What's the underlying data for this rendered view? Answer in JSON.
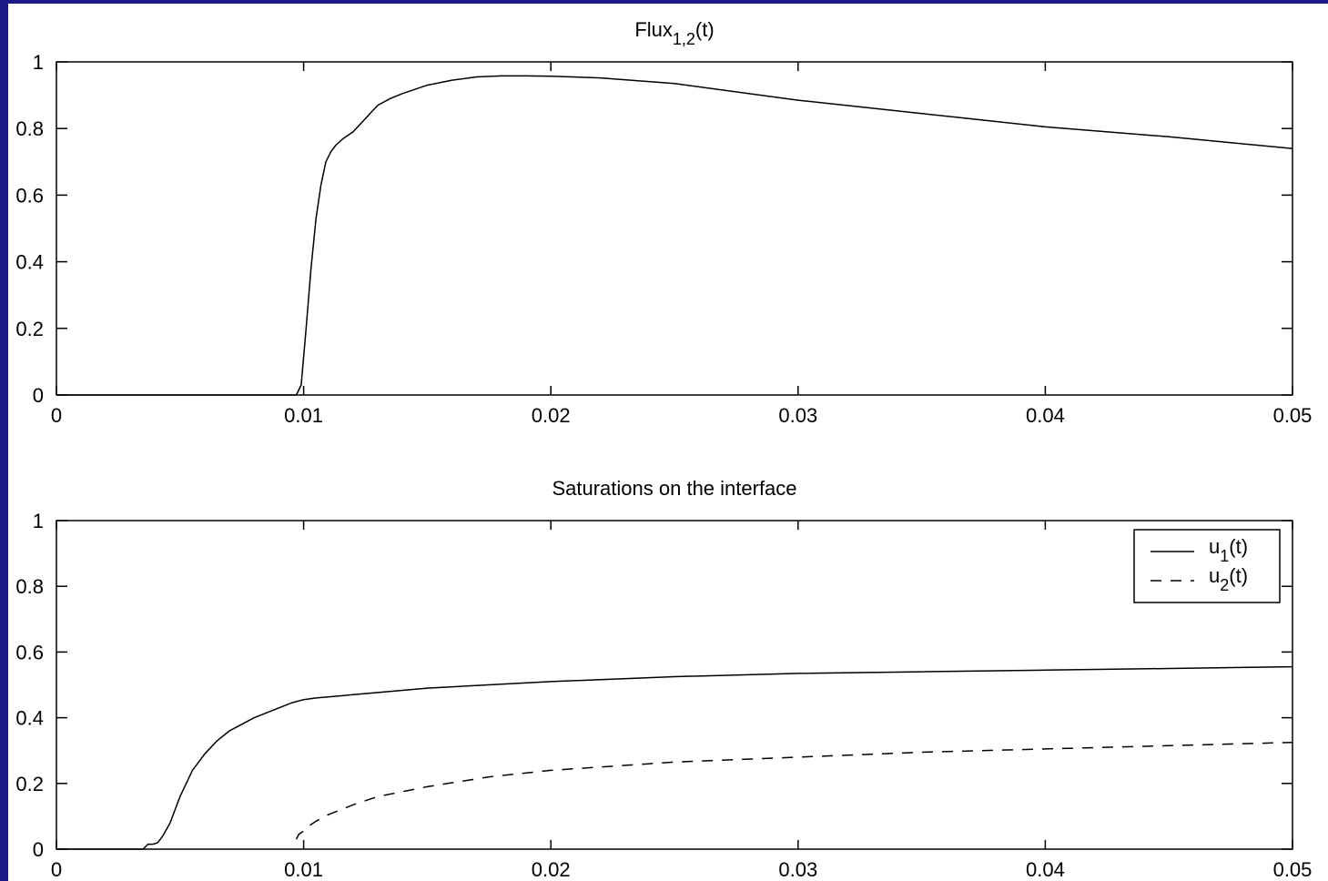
{
  "colors": {
    "frame": "#1c1a8a",
    "background": "#ffffff",
    "ink": "#000000"
  },
  "chart_data": [
    {
      "type": "line",
      "title": "Flux",
      "title_subscript": "1,2",
      "title_suffix": "(t)",
      "xlim": [
        0,
        0.05
      ],
      "ylim": [
        0,
        1
      ],
      "xticks": [
        "0",
        "0.01",
        "0.02",
        "0.03",
        "0.04",
        "0.05"
      ],
      "yticks": [
        "0",
        "0.2",
        "0.4",
        "0.6",
        "0.8",
        "1"
      ],
      "grid": false,
      "series": [
        {
          "style": "solid",
          "x": [
            0,
            0.0097,
            0.0099,
            0.0101,
            0.0103,
            0.0105,
            0.0107,
            0.0109,
            0.0111,
            0.0113,
            0.0116,
            0.012,
            0.0125,
            0.013,
            0.0135,
            0.014,
            0.015,
            0.016,
            0.017,
            0.018,
            0.019,
            0.02,
            0.022,
            0.025,
            0.03,
            0.035,
            0.04,
            0.045,
            0.05
          ],
          "y": [
            0,
            0,
            0.03,
            0.2,
            0.38,
            0.53,
            0.63,
            0.7,
            0.73,
            0.75,
            0.77,
            0.79,
            0.83,
            0.87,
            0.89,
            0.905,
            0.93,
            0.945,
            0.955,
            0.958,
            0.958,
            0.957,
            0.952,
            0.935,
            0.885,
            0.845,
            0.805,
            0.775,
            0.74
          ]
        }
      ]
    },
    {
      "type": "line",
      "title": "Saturations on the interface",
      "xlim": [
        0,
        0.05
      ],
      "ylim": [
        0,
        1
      ],
      "xticks": [
        "0",
        "0.01",
        "0.02",
        "0.03",
        "0.04",
        "0.05"
      ],
      "yticks": [
        "0",
        "0.2",
        "0.4",
        "0.6",
        "0.8",
        "1"
      ],
      "grid": false,
      "legend": "top-right",
      "series": [
        {
          "name": "u",
          "name_subscript": "1",
          "name_suffix": "(t)",
          "style": "solid",
          "x": [
            0,
            0.0035,
            0.0037,
            0.0039,
            0.0041,
            0.0043,
            0.0046,
            0.005,
            0.0055,
            0.006,
            0.0065,
            0.007,
            0.008,
            0.009,
            0.0095,
            0.01,
            0.0105,
            0.012,
            0.015,
            0.02,
            0.025,
            0.03,
            0.035,
            0.04,
            0.045,
            0.05
          ],
          "y": [
            0,
            0,
            0.015,
            0.015,
            0.02,
            0.04,
            0.08,
            0.16,
            0.24,
            0.29,
            0.33,
            0.36,
            0.4,
            0.43,
            0.445,
            0.455,
            0.46,
            0.47,
            0.49,
            0.51,
            0.525,
            0.535,
            0.54,
            0.545,
            0.55,
            0.555
          ]
        },
        {
          "name": "u",
          "name_subscript": "2",
          "name_suffix": "(t)",
          "style": "dashed",
          "x": [
            0.0097,
            0.0098,
            0.01,
            0.0102,
            0.0105,
            0.011,
            0.012,
            0.013,
            0.015,
            0.0175,
            0.02,
            0.025,
            0.03,
            0.035,
            0.04,
            0.045,
            0.05
          ],
          "y": [
            0.03,
            0.045,
            0.055,
            0.07,
            0.085,
            0.105,
            0.135,
            0.16,
            0.19,
            0.22,
            0.24,
            0.265,
            0.28,
            0.295,
            0.305,
            0.315,
            0.325
          ]
        }
      ]
    }
  ]
}
